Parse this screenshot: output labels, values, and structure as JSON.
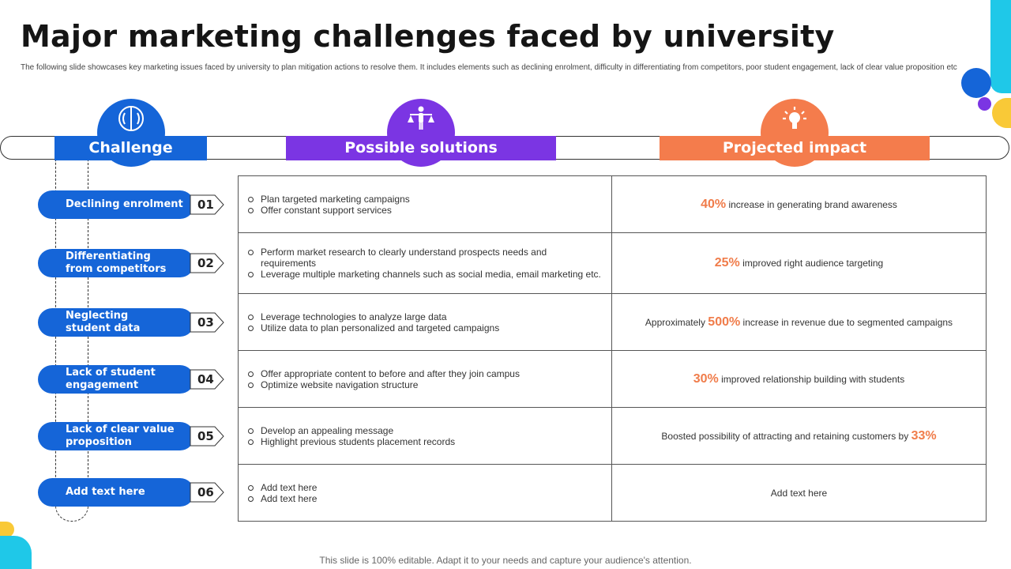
{
  "title": "Major marketing challenges faced by university",
  "subtitle": "The following slide showcases key marketing issues faced by university to plan mitigation  actions to resolve them. It includes elements such as declining enrolment, difficulty in differentiating from competitors, poor student engagement, lack of clear value proposition etc",
  "headers": {
    "challenge": "Challenge",
    "solutions": "Possible solutions",
    "impact": "Projected impact"
  },
  "colors": {
    "blue": "#1565d8",
    "purple": "#7b35e3",
    "orange": "#f47c4c",
    "highlight": "#f07c4a"
  },
  "icons": {
    "challenge": "brain-icon",
    "solutions": "balance-person-icon",
    "impact": "lightbulb-icon"
  },
  "rows": [
    {
      "challenge": "Declining enrolment",
      "num": "01",
      "solutions": [
        "Plan targeted marketing campaigns",
        "Offer constant support services"
      ],
      "impact_pre": "",
      "impact_pct": "40%",
      "impact_post": " increase in generating brand awareness"
    },
    {
      "challenge": "Differentiating from competitors",
      "num": "02",
      "solutions": [
        "Perform market research to clearly understand prospects needs and requirements",
        "Leverage multiple marketing channels such as social media, email marketing etc."
      ],
      "impact_pre": "",
      "impact_pct": "25%",
      "impact_post": " improved right audience targeting"
    },
    {
      "challenge": "Neglecting student data",
      "num": "03",
      "solutions": [
        "Leverage technologies to analyze large data",
        "Utilize data to plan personalized and targeted campaigns"
      ],
      "impact_pre": "Approximately ",
      "impact_pct": "500%",
      "impact_post": " increase in revenue due to segmented campaigns"
    },
    {
      "challenge": "Lack of student engagement",
      "num": "04",
      "solutions": [
        "Offer appropriate content to before and after they join campus",
        "Optimize website navigation structure"
      ],
      "impact_pre": "",
      "impact_pct": "30%",
      "impact_post": " improved relationship building with students"
    },
    {
      "challenge": "Lack of clear value proposition",
      "num": "05",
      "solutions": [
        "Develop an appealing message",
        "Highlight previous students placement records"
      ],
      "impact_pre": "Boosted possibility of attracting and retaining customers by ",
      "impact_pct": "33%",
      "impact_post": ""
    },
    {
      "challenge": "Add text here",
      "num": "06",
      "solutions": [
        "Add text here",
        "Add text here"
      ],
      "impact_pre": "Add text here",
      "impact_pct": "",
      "impact_post": ""
    }
  ],
  "footer": "This slide is 100% editable. Adapt it to your needs and capture your audience's attention."
}
